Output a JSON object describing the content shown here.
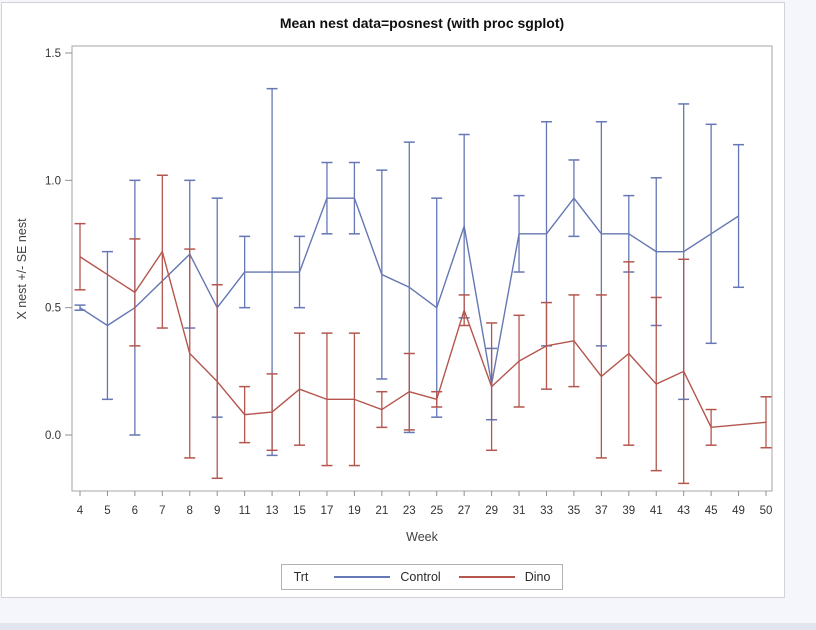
{
  "page": {
    "background": "#f4f6fb"
  },
  "graph": {
    "title": "Mean nest data=posnest (with proc sgplot)",
    "xlabel": "Week",
    "ylabel": "X nest +/- SE nest",
    "legend": {
      "title": "Trt",
      "items": [
        {
          "label": "Control",
          "color": "#6577b4"
        },
        {
          "label": "Dino",
          "color": "#b4564e"
        }
      ]
    }
  },
  "chart_data": {
    "type": "line",
    "title": "Mean nest data=posnest (with proc sgplot)",
    "xlabel": "Week",
    "ylabel": "X nest +/- SE nest",
    "error_bars": true,
    "grid": false,
    "legend_position": "bottom",
    "categories": [
      4,
      5,
      6,
      7,
      8,
      9,
      11,
      13,
      15,
      17,
      19,
      21,
      23,
      25,
      27,
      29,
      31,
      33,
      35,
      37,
      39,
      41,
      43,
      45,
      49,
      50
    ],
    "y_ticks": [
      0.0,
      0.5,
      1.0,
      1.5
    ],
    "y_tick_labels": [
      "0.0",
      "0.5",
      "1.0",
      "1.5"
    ],
    "ylim": [
      -0.22,
      1.53
    ],
    "series": [
      {
        "name": "Control",
        "color": "#6577b4",
        "means": [
          0.5,
          0.43,
          0.5,
          null,
          0.71,
          0.5,
          0.64,
          0.64,
          0.64,
          0.93,
          0.93,
          0.63,
          0.58,
          0.5,
          0.82,
          0.2,
          0.79,
          0.79,
          0.93,
          0.79,
          0.79,
          0.72,
          0.72,
          0.79,
          0.86,
          null
        ],
        "se": [
          0.01,
          0.29,
          0.5,
          null,
          0.29,
          0.43,
          0.14,
          0.72,
          0.14,
          0.14,
          0.14,
          0.41,
          0.57,
          0.43,
          0.36,
          0.14,
          0.15,
          0.44,
          0.15,
          0.44,
          0.15,
          0.29,
          0.58,
          0.43,
          0.28,
          null
        ]
      },
      {
        "name": "Dino",
        "color": "#b4564e",
        "means": [
          0.7,
          null,
          0.56,
          0.72,
          0.32,
          0.21,
          0.08,
          0.09,
          0.18,
          0.14,
          0.14,
          0.1,
          0.17,
          0.14,
          0.49,
          0.19,
          0.29,
          0.35,
          0.37,
          0.23,
          0.32,
          0.2,
          0.25,
          0.03,
          null,
          0.05
        ],
        "se": [
          0.13,
          null,
          0.21,
          0.3,
          0.41,
          0.38,
          0.11,
          0.15,
          0.22,
          0.26,
          0.26,
          0.07,
          0.15,
          0.03,
          0.06,
          0.25,
          0.18,
          0.17,
          0.18,
          0.32,
          0.36,
          0.34,
          0.44,
          0.07,
          null,
          0.1
        ]
      }
    ]
  }
}
